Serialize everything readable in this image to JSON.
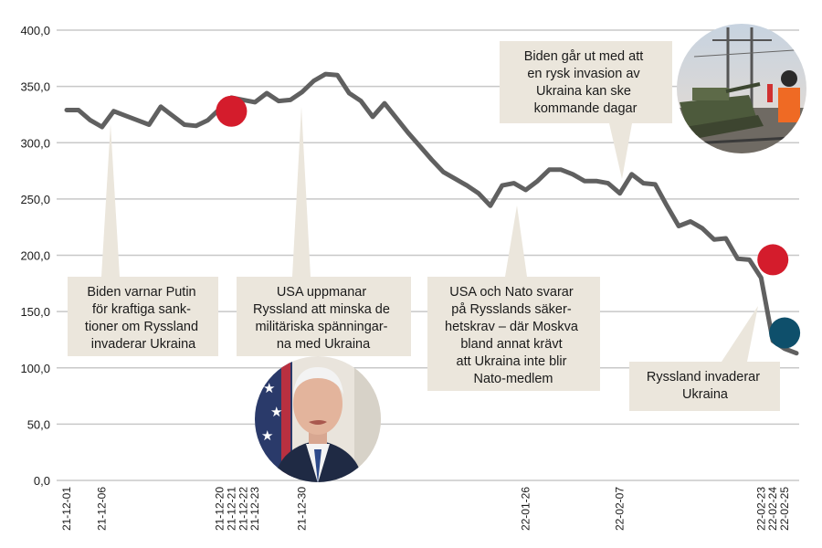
{
  "chart_data": {
    "type": "line",
    "title": "",
    "xlabel": "",
    "ylabel": "",
    "ylim": [
      0,
      400
    ],
    "y_ticks": [
      "0,0",
      "50,0",
      "100,0",
      "150,0",
      "200,0",
      "250,0",
      "300,0",
      "350,0",
      "400,0"
    ],
    "x_ticks": [
      "21-12-01",
      "21-12-06",
      "21-12-20",
      "21-12-21",
      "21-12-22",
      "21-12-23",
      "21-12-30",
      "22-01-26",
      "22-02-07",
      "22-02-23",
      "22-02-24",
      "22-02-25"
    ],
    "grid": true,
    "series": [
      {
        "color": "#606060",
        "x": [
          "21-12-01",
          "21-12-02",
          "21-12-03",
          "21-12-06",
          "21-12-07",
          "21-12-08",
          "21-12-09",
          "21-12-10",
          "21-12-13",
          "21-12-14",
          "21-12-15",
          "21-12-16",
          "21-12-17",
          "21-12-20",
          "21-12-21",
          "21-12-22",
          "21-12-23",
          "21-12-27",
          "21-12-28",
          "21-12-29",
          "21-12-30",
          "21-12-31",
          "22-01-03",
          "22-01-04",
          "22-01-05",
          "22-01-06",
          "22-01-07",
          "22-01-10",
          "22-01-11",
          "22-01-12",
          "22-01-13",
          "22-01-14",
          "22-01-17",
          "22-01-18",
          "22-01-19",
          "22-01-20",
          "22-01-21",
          "22-01-24",
          "22-01-25",
          "22-01-26",
          "22-01-27",
          "22-01-28",
          "22-01-31",
          "22-02-01",
          "22-02-02",
          "22-02-03",
          "22-02-04",
          "22-02-07",
          "22-02-08",
          "22-02-09",
          "22-02-10",
          "22-02-11",
          "22-02-14",
          "22-02-15",
          "22-02-16",
          "22-02-17",
          "22-02-18",
          "22-02-21",
          "22-02-22",
          "22-02-23",
          "22-02-24",
          "22-02-25",
          "22-02-28"
        ],
        "values": [
          329,
          329,
          320,
          314,
          328,
          324,
          320,
          316,
          332,
          324,
          316,
          315,
          320,
          330,
          340,
          338,
          336,
          344,
          337,
          338,
          345,
          355,
          361,
          360,
          344,
          337,
          323,
          335,
          322,
          309,
          297,
          285,
          274,
          268,
          262,
          255,
          244,
          262,
          264,
          258,
          266,
          276,
          276,
          272,
          266,
          266,
          264,
          255,
          272,
          264,
          263,
          244,
          226,
          230,
          224,
          214,
          215,
          197,
          196,
          180,
          124,
          117,
          113
        ]
      }
    ],
    "markers": [
      {
        "x": "21-12-21",
        "y": 328,
        "color": "#d41c2c"
      },
      {
        "x": "22-02-24",
        "y": 196,
        "color": "#d41c2c"
      },
      {
        "x": "22-02-25",
        "y": 131,
        "color": "#0e4f6b"
      }
    ],
    "annotations": [
      {
        "lines": [
          "Biden varnar Putin",
          "för kraftiga sank-",
          "tioner om Ryssland",
          "invaderar Ukraina"
        ]
      },
      {
        "lines": [
          "USA uppmanar",
          "Ryssland att minska de",
          "militäriska spänningar-",
          "na med Ukraina"
        ]
      },
      {
        "lines": [
          "USA och Nato svarar",
          "på Rysslands säker-",
          "hetskrav – där Moskva",
          "bland annat krävt",
          "att Ukraina inte blir",
          "Nato-medlem"
        ]
      },
      {
        "lines": [
          "Biden går ut med att",
          "en rysk invasion av",
          "Ukraina kan ske",
          "kommande dagar"
        ]
      },
      {
        "lines": [
          "Ryssland invaderar",
          "Ukraina"
        ]
      }
    ],
    "colors": {
      "line": "#606060",
      "grid": "#c8c8c8",
      "box": "#ebe6dc",
      "red_marker": "#d41c2c",
      "blue_marker": "#0e4f6b"
    },
    "photos": [
      "biden-portrait",
      "tank-on-railcar"
    ]
  }
}
